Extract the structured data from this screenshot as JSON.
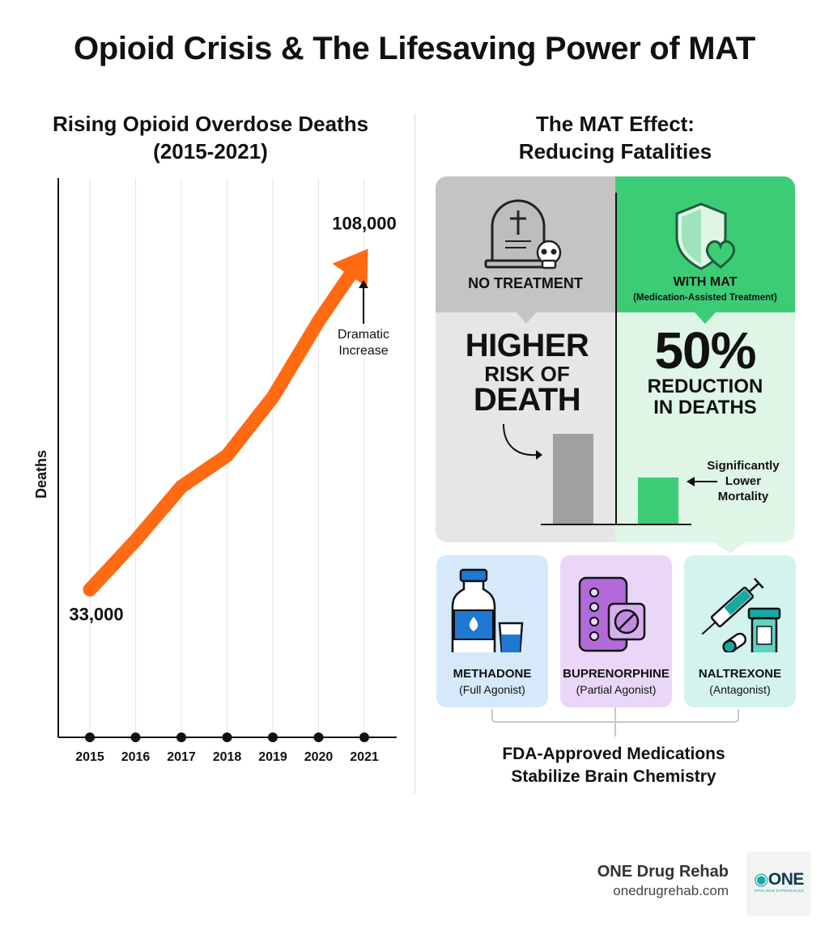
{
  "title": "Opioid Crisis & The Lifesaving Power of MAT",
  "chart": {
    "subtitle_line1": "Rising Opioid Overdose Deaths",
    "subtitle_line2": "(2015-2021)",
    "ylabel": "Deaths",
    "start_label": "33,000",
    "end_label": "108,000",
    "annotation_line1": "Dramatic",
    "annotation_line2": "Increase"
  },
  "chart_data": {
    "type": "line",
    "title": "Rising Opioid Overdose Deaths (2015-2021)",
    "xlabel": "",
    "ylabel": "Deaths",
    "x": [
      "2015",
      "2016",
      "2017",
      "2018",
      "2019",
      "2020",
      "2021"
    ],
    "series": [
      {
        "values": [
          33000,
          44000,
          56000,
          63000,
          76000,
          93000,
          108000
        ]
      }
    ],
    "ylim": [
      0,
      125000
    ],
    "grid": "vertical",
    "color": "#ff6a13"
  },
  "mat": {
    "subtitle_line1": "The MAT Effect:",
    "subtitle_line2": "Reducing Fatalities",
    "no_treatment": {
      "label": "NO TREATMENT",
      "big1": "HIGHER",
      "big2": "RISK OF",
      "big3": "DEATH"
    },
    "with_mat": {
      "label": "WITH MAT",
      "sublabel": "(Medication-Assisted Treatment)",
      "big1": "50%",
      "big2": "REDUCTION",
      "big3": "IN DEATHS",
      "note_line1": "Significantly",
      "note_line2": "Lower",
      "note_line3": "Mortality"
    },
    "medications": [
      {
        "name": "METHADONE",
        "type": "(Full Agonist)",
        "bg": "#d6e9fb"
      },
      {
        "name": "BUPRENORPHINE",
        "type": "(Partial Agonist)",
        "bg": "#ead7f8"
      },
      {
        "name": "NALTREXONE",
        "type": "(Antagonist)",
        "bg": "#d4f3ee"
      }
    ],
    "footer_line1": "FDA-Approved Medications",
    "footer_line2": "Stabilize Brain Chemistry"
  },
  "brand": {
    "name": "ONE Drug Rehab",
    "url": "onedrugrehab.com",
    "logo_text": "ONE",
    "logo_tagline": "OPEN NEW EXPERIENCES"
  },
  "colors": {
    "orange": "#ff6a13",
    "green": "#3dcc76",
    "gray_bar": "#a0a0a0",
    "green_bar": "#3dcc76",
    "teal": "#17a9a2"
  }
}
